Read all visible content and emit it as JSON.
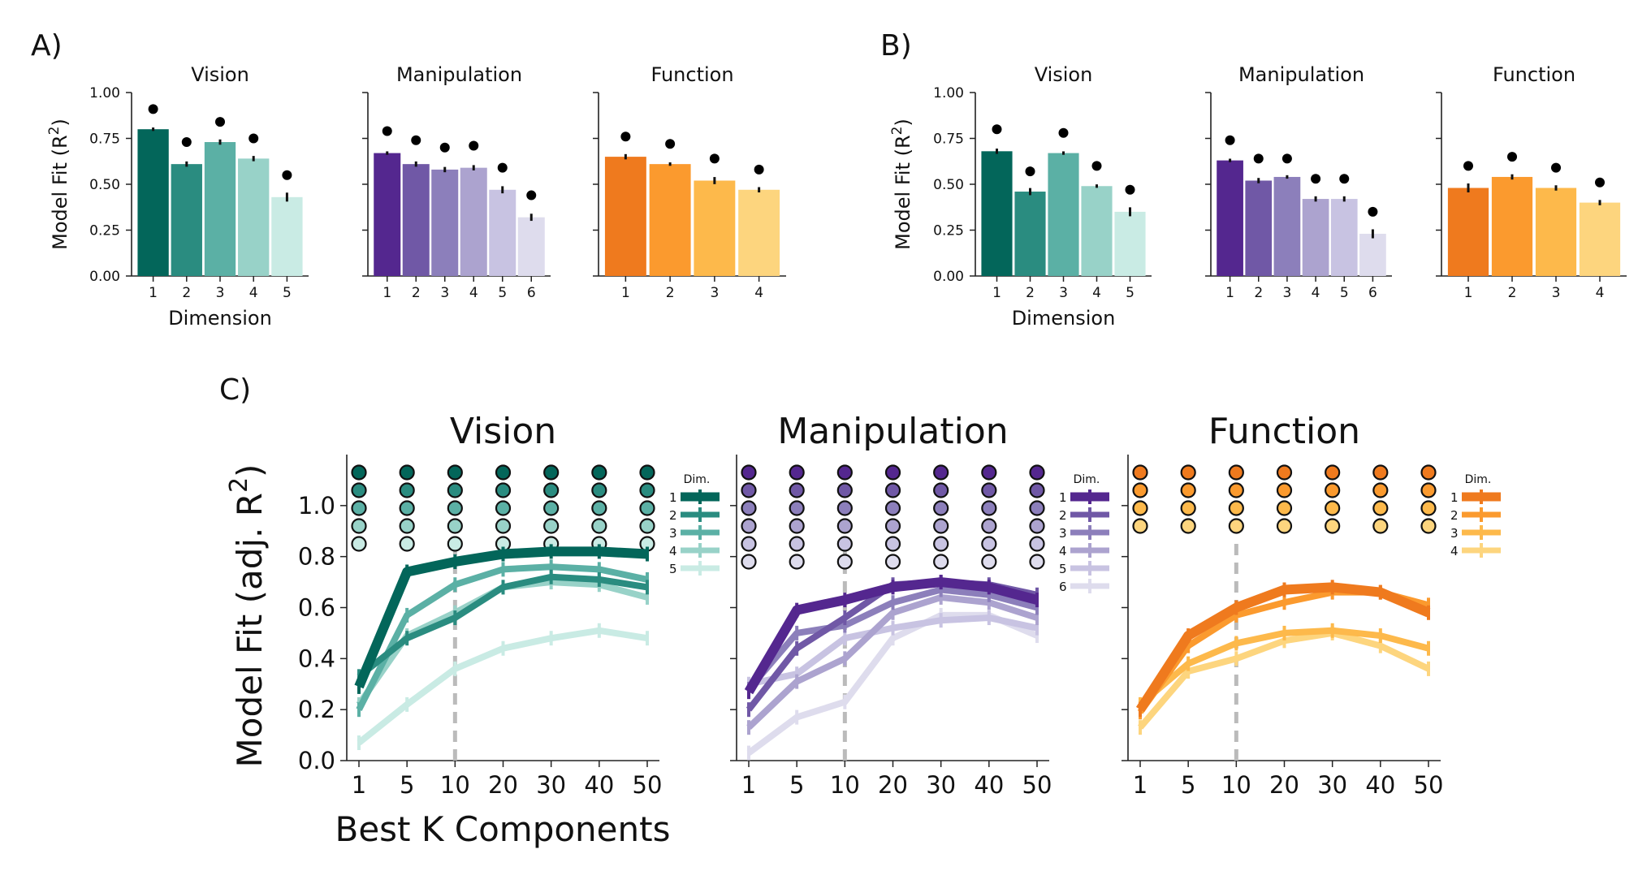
{
  "panel_labels": {
    "a": "A)",
    "b": "B)",
    "c": "C)"
  },
  "colors": {
    "vision": [
      "#03665a",
      "#2a8c80",
      "#5bb0a5",
      "#98d2c8",
      "#c9ebe4"
    ],
    "manipulation": [
      "#54278f",
      "#7058a6",
      "#8c7fbb",
      "#aca3cf",
      "#c8c3e2",
      "#dedced"
    ],
    "function": [
      "#ef7a1e",
      "#fb9a2e",
      "#fdb94b",
      "#fdd57e"
    ],
    "dot": "#000000",
    "dashed": "#bbbbbb"
  },
  "chart_data": [
    {
      "id": "A",
      "type": "bar",
      "ylabel": "Model Fit (R²)",
      "xlabel": "Dimension",
      "ylim": [
        0,
        1
      ],
      "yticks": [
        "0.00",
        "0.25",
        "0.50",
        "0.75",
        "1.00"
      ],
      "panels": [
        {
          "title": "Vision",
          "colors_key": "vision",
          "categories": [
            "1",
            "2",
            "3",
            "4",
            "5"
          ],
          "values": [
            0.8,
            0.61,
            0.73,
            0.64,
            0.43
          ],
          "err": [
            0.005,
            0.01,
            0.01,
            0.01,
            0.02
          ],
          "noise_ceiling": [
            0.91,
            0.73,
            0.84,
            0.75,
            0.55
          ]
        },
        {
          "title": "Manipulation",
          "colors_key": "manipulation",
          "categories": [
            "1",
            "2",
            "3",
            "4",
            "5",
            "6"
          ],
          "values": [
            0.67,
            0.61,
            0.58,
            0.59,
            0.47,
            0.32
          ],
          "err": [
            0.005,
            0.01,
            0.01,
            0.01,
            0.015,
            0.015
          ],
          "noise_ceiling": [
            0.79,
            0.74,
            0.7,
            0.71,
            0.59,
            0.44
          ]
        },
        {
          "title": "Function",
          "colors_key": "function",
          "categories": [
            "1",
            "2",
            "3",
            "4"
          ],
          "values": [
            0.65,
            0.61,
            0.52,
            0.47
          ],
          "err": [
            0.01,
            0.005,
            0.015,
            0.01
          ],
          "noise_ceiling": [
            0.76,
            0.72,
            0.64,
            0.58
          ]
        }
      ]
    },
    {
      "id": "B",
      "type": "bar",
      "ylabel": "Model Fit (R²)",
      "xlabel": "Dimension",
      "ylim": [
        0,
        1
      ],
      "yticks": [
        "0.00",
        "0.25",
        "0.50",
        "0.75",
        "1.00"
      ],
      "panels": [
        {
          "title": "Vision",
          "colors_key": "vision",
          "categories": [
            "1",
            "2",
            "3",
            "4",
            "5"
          ],
          "values": [
            0.68,
            0.46,
            0.67,
            0.49,
            0.35
          ],
          "err": [
            0.01,
            0.015,
            0.005,
            0.005,
            0.02
          ],
          "noise_ceiling": [
            0.8,
            0.57,
            0.78,
            0.6,
            0.47
          ]
        },
        {
          "title": "Manipulation",
          "colors_key": "manipulation",
          "categories": [
            "1",
            "2",
            "3",
            "4",
            "5",
            "6"
          ],
          "values": [
            0.63,
            0.52,
            0.54,
            0.42,
            0.42,
            0.23
          ],
          "err": [
            0.005,
            0.01,
            0.005,
            0.01,
            0.01,
            0.02
          ],
          "noise_ceiling": [
            0.74,
            0.64,
            0.64,
            0.53,
            0.53,
            0.35
          ]
        },
        {
          "title": "Function",
          "colors_key": "function",
          "categories": [
            "1",
            "2",
            "3",
            "4"
          ],
          "values": [
            0.48,
            0.54,
            0.48,
            0.4
          ],
          "err": [
            0.02,
            0.01,
            0.01,
            0.01
          ],
          "noise_ceiling": [
            0.6,
            0.65,
            0.59,
            0.51
          ]
        }
      ]
    },
    {
      "id": "C",
      "type": "line",
      "ylabel": "Model Fit (adj. R²)",
      "xlabel": "Best K Components",
      "x": [
        "1",
        "5",
        "10",
        "20",
        "30",
        "40",
        "50"
      ],
      "dashed_x": "10",
      "ylim": [
        0,
        1.2
      ],
      "yticks": [
        "0.0",
        "0.2",
        "0.4",
        "0.6",
        "0.8",
        "1.0"
      ],
      "legend_title": "Dim.",
      "panels": [
        {
          "title": "Vision",
          "colors_key": "vision",
          "dots_n": 5,
          "series": [
            {
              "name": "1",
              "values": [
                0.29,
                0.74,
                0.78,
                0.81,
                0.82,
                0.82,
                0.81
              ]
            },
            {
              "name": "2",
              "values": [
                0.33,
                0.48,
                0.56,
                0.68,
                0.72,
                0.71,
                0.68
              ]
            },
            {
              "name": "3",
              "values": [
                0.2,
                0.57,
                0.69,
                0.75,
                0.76,
                0.75,
                0.71
              ]
            },
            {
              "name": "4",
              "values": [
                0.22,
                0.49,
                0.58,
                0.68,
                0.7,
                0.69,
                0.64
              ]
            },
            {
              "name": "5",
              "values": [
                0.07,
                0.22,
                0.36,
                0.44,
                0.48,
                0.51,
                0.48
              ]
            }
          ]
        },
        {
          "title": "Manipulation",
          "colors_key": "manipulation",
          "dots_n": 6,
          "series": [
            {
              "name": "1",
              "values": [
                0.27,
                0.59,
                0.63,
                0.68,
                0.7,
                0.68,
                0.63
              ]
            },
            {
              "name": "2",
              "values": [
                0.2,
                0.44,
                0.56,
                0.69,
                0.7,
                0.69,
                0.65
              ]
            },
            {
              "name": "3",
              "values": [
                0.28,
                0.5,
                0.53,
                0.62,
                0.67,
                0.65,
                0.6
              ]
            },
            {
              "name": "4",
              "values": [
                0.13,
                0.31,
                0.4,
                0.58,
                0.64,
                0.62,
                0.56
              ]
            },
            {
              "name": "5",
              "values": [
                0.3,
                0.34,
                0.48,
                0.52,
                0.55,
                0.56,
                0.52
              ]
            },
            {
              "name": "6",
              "values": [
                0.03,
                0.17,
                0.23,
                0.48,
                0.57,
                0.57,
                0.49
              ]
            }
          ]
        },
        {
          "title": "Function",
          "colors_key": "function",
          "dots_n": 4,
          "series": [
            {
              "name": "1",
              "values": [
                0.2,
                0.49,
                0.6,
                0.67,
                0.68,
                0.66,
                0.58
              ]
            },
            {
              "name": "2",
              "values": [
                0.19,
                0.45,
                0.57,
                0.62,
                0.66,
                0.66,
                0.61
              ]
            },
            {
              "name": "3",
              "values": [
                0.22,
                0.38,
                0.46,
                0.5,
                0.51,
                0.49,
                0.44
              ]
            },
            {
              "name": "4",
              "values": [
                0.13,
                0.35,
                0.4,
                0.47,
                0.5,
                0.45,
                0.36
              ]
            }
          ]
        }
      ]
    }
  ]
}
